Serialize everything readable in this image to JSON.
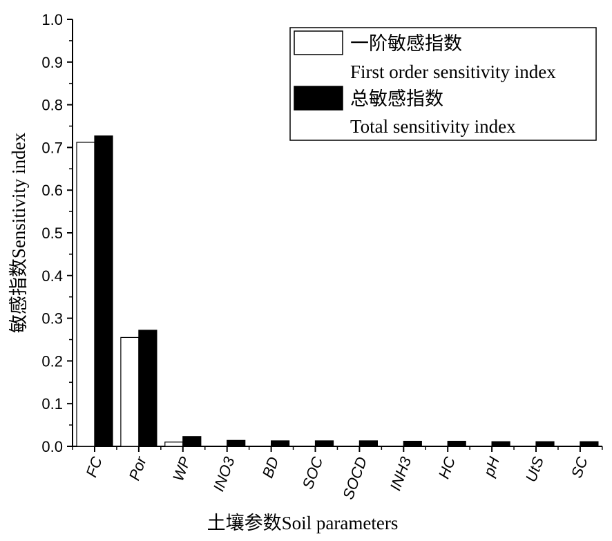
{
  "chart_data": {
    "type": "bar",
    "categories": [
      "FC",
      "Por",
      "WP",
      "INO3",
      "BD",
      "SOC",
      "SOCD",
      "INH3",
      "HC",
      "pH",
      "UtS",
      "SC"
    ],
    "series": [
      {
        "name": "一阶敏感指数 First order sensitivity index",
        "name_cn": "一阶敏感指数",
        "name_en": "First order sensitivity index",
        "fill": "#ffffff",
        "values": [
          0.712,
          0.255,
          0.01,
          0,
          0,
          0,
          0,
          0,
          0,
          0,
          0,
          0
        ]
      },
      {
        "name": "总敏感指数 Total sensitivity index",
        "name_cn": "总敏感指数",
        "name_en": "Total sensitivity index",
        "fill": "#000000",
        "values": [
          0.727,
          0.272,
          0.023,
          0.014,
          0.013,
          0.013,
          0.013,
          0.012,
          0.012,
          0.011,
          0.011,
          0.011
        ]
      }
    ],
    "xlabel": "土壤参数Soil parameters",
    "ylabel": "敏感指数Sensitivity index",
    "ylim": [
      0,
      1.0
    ],
    "yticks": [
      "0.0",
      "0.1",
      "0.2",
      "0.3",
      "0.4",
      "0.5",
      "0.6",
      "0.7",
      "0.8",
      "0.9",
      "1.0"
    ],
    "grid": false,
    "legend_position": "top-right"
  }
}
